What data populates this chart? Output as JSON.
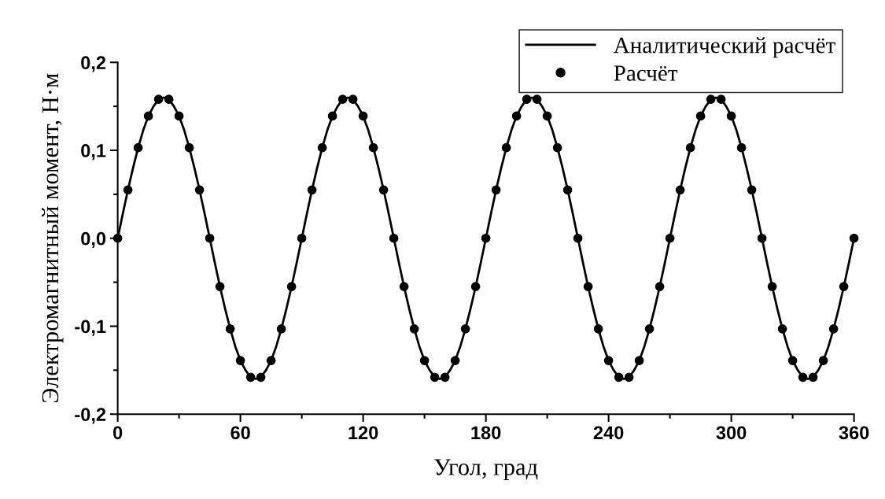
{
  "chart_data": {
    "type": "line",
    "xlabel": "Угол, град",
    "ylabel": "Электромагнитный момент, Н·м",
    "xlim": [
      0,
      360
    ],
    "xticks": [
      0,
      60,
      120,
      180,
      240,
      300,
      360
    ],
    "ylim": [
      -0.2,
      0.2
    ],
    "yticks": [
      {
        "value": -0.2,
        "label": "-0,2"
      },
      {
        "value": -0.1,
        "label": "-0,1"
      },
      {
        "value": 0.0,
        "label": "0,0"
      },
      {
        "value": 0.1,
        "label": "0,1"
      },
      {
        "value": 0.2,
        "label": "0,2"
      }
    ],
    "grid": false,
    "legend": "top right",
    "series": [
      {
        "name": "Аналитический расчёт",
        "color": "#000000",
        "marker": "none",
        "line_style": "solid",
        "x": [
          0,
          2.5,
          5,
          7.5,
          10,
          12.5,
          15,
          17.5,
          20,
          22.5,
          25,
          27.5,
          30,
          32.5,
          35,
          37.5,
          40,
          42.5,
          45,
          47.5,
          50,
          52.5,
          55,
          57.5,
          60,
          62.5,
          65,
          67.5,
          70,
          72.5,
          75,
          77.5,
          80,
          82.5,
          85,
          87.5,
          90,
          92.5,
          95,
          97.5,
          100,
          102.5,
          105,
          107.5,
          110,
          112.5,
          115,
          117.5,
          120,
          122.5,
          125,
          127.5,
          130,
          132.5,
          135,
          137.5,
          140,
          142.5,
          145,
          147.5,
          150,
          152.5,
          155,
          157.5,
          160,
          162.5,
          165,
          167.5,
          170,
          172.5,
          175,
          177.5,
          180,
          182.5,
          185,
          187.5,
          190,
          192.5,
          195,
          197.5,
          200,
          202.5,
          205,
          207.5,
          210,
          212.5,
          215,
          217.5,
          220,
          222.5,
          225,
          227.5,
          230,
          232.5,
          235,
          237.5,
          240,
          242.5,
          245,
          247.5,
          250,
          252.5,
          255,
          257.5,
          260,
          262.5,
          265,
          267.5,
          270,
          272.5,
          275,
          277.5,
          280,
          282.5,
          285,
          287.5,
          290,
          292.5,
          295,
          297.5,
          300,
          302.5,
          305,
          307.5,
          310,
          312.5,
          315,
          317.5,
          320,
          322.5,
          325,
          327.5,
          330,
          332.5,
          335,
          337.5,
          340,
          342.5,
          345,
          347.5,
          350,
          352.5,
          355,
          357.5,
          360
        ],
        "values": [
          0,
          0.028,
          0.055,
          0.08,
          0.103,
          0.123,
          0.139,
          0.15,
          0.158,
          0.16,
          0.158,
          0.15,
          0.139,
          0.123,
          0.103,
          0.08,
          0.055,
          0.028,
          0,
          -0.028,
          -0.055,
          -0.08,
          -0.103,
          -0.123,
          -0.139,
          -0.15,
          -0.158,
          -0.16,
          -0.158,
          -0.15,
          -0.139,
          -0.123,
          -0.103,
          -0.08,
          -0.055,
          -0.028,
          0,
          0.028,
          0.055,
          0.08,
          0.103,
          0.123,
          0.139,
          0.15,
          0.158,
          0.16,
          0.158,
          0.15,
          0.139,
          0.123,
          0.103,
          0.08,
          0.055,
          0.028,
          0,
          -0.028,
          -0.055,
          -0.08,
          -0.103,
          -0.123,
          -0.139,
          -0.15,
          -0.158,
          -0.16,
          -0.158,
          -0.15,
          -0.139,
          -0.123,
          -0.103,
          -0.08,
          -0.055,
          -0.028,
          0,
          0.028,
          0.055,
          0.08,
          0.103,
          0.123,
          0.139,
          0.15,
          0.158,
          0.16,
          0.158,
          0.15,
          0.139,
          0.123,
          0.103,
          0.08,
          0.055,
          0.028,
          0,
          -0.028,
          -0.055,
          -0.08,
          -0.103,
          -0.123,
          -0.139,
          -0.15,
          -0.158,
          -0.16,
          -0.158,
          -0.15,
          -0.139,
          -0.123,
          -0.103,
          -0.08,
          -0.055,
          -0.028,
          0,
          0.028,
          0.055,
          0.08,
          0.103,
          0.123,
          0.139,
          0.15,
          0.158,
          0.16,
          0.158,
          0.15,
          0.139,
          0.123,
          0.103,
          0.08,
          0.055,
          0.028,
          0,
          -0.028,
          -0.055,
          -0.08,
          -0.103,
          -0.123,
          -0.139,
          -0.15,
          -0.158,
          -0.16,
          -0.158,
          -0.15,
          -0.139,
          -0.123,
          -0.103,
          -0.08,
          -0.055,
          -0.028,
          0
        ]
      },
      {
        "name": "Расчёт",
        "type": "scatter",
        "color": "#000000",
        "marker": "circle",
        "x": [
          0,
          5,
          10,
          15,
          20,
          25,
          30,
          35,
          40,
          45,
          50,
          55,
          60,
          65,
          70,
          75,
          80,
          85,
          90,
          95,
          100,
          105,
          110,
          115,
          120,
          125,
          130,
          135,
          140,
          145,
          150,
          155,
          160,
          165,
          170,
          175,
          180,
          185,
          190,
          195,
          200,
          205,
          210,
          215,
          220,
          225,
          230,
          235,
          240,
          245,
          250,
          255,
          260,
          265,
          270,
          275,
          280,
          285,
          290,
          295,
          300,
          305,
          310,
          315,
          320,
          325,
          330,
          335,
          340,
          345,
          350,
          355,
          360
        ],
        "values": [
          0,
          0.055,
          0.103,
          0.139,
          0.158,
          0.158,
          0.139,
          0.103,
          0.055,
          0,
          -0.055,
          -0.103,
          -0.139,
          -0.158,
          -0.158,
          -0.139,
          -0.103,
          -0.055,
          0,
          0.055,
          0.103,
          0.139,
          0.158,
          0.158,
          0.139,
          0.103,
          0.055,
          0,
          -0.055,
          -0.103,
          -0.139,
          -0.158,
          -0.158,
          -0.139,
          -0.103,
          -0.055,
          0,
          0.055,
          0.103,
          0.139,
          0.158,
          0.158,
          0.139,
          0.103,
          0.055,
          0,
          -0.055,
          -0.103,
          -0.139,
          -0.158,
          -0.158,
          -0.139,
          -0.103,
          -0.055,
          0,
          0.055,
          0.103,
          0.139,
          0.158,
          0.158,
          0.139,
          0.103,
          0.055,
          0,
          -0.055,
          -0.103,
          -0.139,
          -0.158,
          -0.158,
          -0.139,
          -0.103,
          -0.055,
          0
        ]
      }
    ]
  }
}
